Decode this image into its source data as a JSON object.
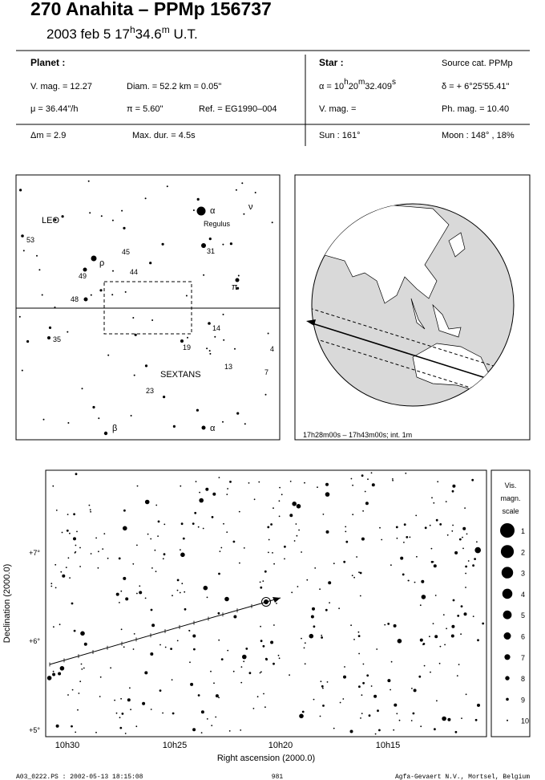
{
  "header": {
    "title": "270 Anahita  –  PPMp 156737",
    "date_parts": [
      "2003 feb  5  17",
      "h",
      "34.6",
      "m",
      " U.T."
    ]
  },
  "info": {
    "planet_label": "Planet :",
    "vmag": "V. mag. = 12.27",
    "diam": "Diam. = 52.2 km = 0.05\"",
    "mu": "μ =  36.44\"/h",
    "pi": "π =  5.60\"",
    "ref": "Ref. = EG1990–004",
    "star_label": "Star :",
    "source": "Source cat.  PPMp",
    "ra_parts": [
      "α = 10",
      "h",
      "20",
      "m",
      "32.409",
      "s"
    ],
    "dec": "δ = + 6°25'55.41\"",
    "star_vmag": "V. mag. =",
    "phmag": "Ph. mag. = 10.40",
    "dm": "Δm = 2.9",
    "maxdur": "Max. dur. = 4.5s",
    "sun": "Sun : 161°",
    "moon": "Moon : 148° , 18%"
  },
  "finder": {
    "labels": [
      "LEO",
      "SEXTANS",
      "α",
      "Regulus",
      "ν",
      "53",
      "45",
      "31",
      "44",
      "49",
      "ρ",
      "π",
      "48",
      "35",
      "14",
      "19",
      "4",
      "13",
      "7",
      "23",
      "β",
      "α"
    ]
  },
  "globe": {
    "caption": "17h28m00s – 17h43m00s; int.  1m"
  },
  "chart": {
    "x_label": "Right ascension (2000.0)",
    "y_label": "Declination (2000.0)",
    "xticks": [
      "10h30",
      "10h25",
      "10h20",
      "10h15"
    ],
    "yticks": [
      "+7°",
      "+6°",
      "+5°"
    ]
  },
  "scale": {
    "title_lines": [
      "Vis.",
      "magn.",
      "scale"
    ],
    "magnitudes": [
      "1",
      "2",
      "3",
      "4",
      "5",
      "6",
      "7",
      "8",
      "9",
      "10"
    ]
  },
  "footer": {
    "left": "A03_0222.PS : 2002-05-13 18:15:08",
    "center": "981",
    "right": "Agfa-Gevaert N.V., Mortsel, Belgium"
  }
}
